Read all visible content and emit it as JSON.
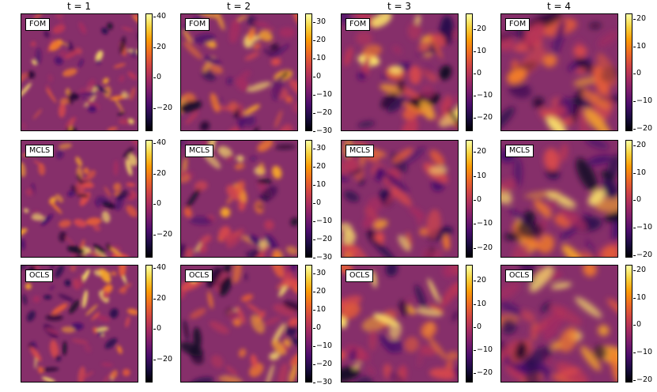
{
  "chart_data": {
    "type": "heatmap",
    "colormap": "inferno",
    "column_titles": [
      "t = 1",
      "t = 2",
      "t = 3",
      "t = 4"
    ],
    "row_labels": [
      "FOM",
      "MCLS",
      "OCLS"
    ],
    "colorbars": [
      [
        {
          "vmin": -35,
          "vmax": 42,
          "ticks": [
            40,
            20,
            0,
            -20
          ]
        },
        {
          "vmin": -30,
          "vmax": 35,
          "ticks": [
            30,
            20,
            10,
            0,
            -10,
            -20,
            -30
          ]
        },
        {
          "vmin": -26,
          "vmax": 27,
          "ticks": [
            20,
            10,
            0,
            -10,
            -20
          ]
        },
        {
          "vmin": -21,
          "vmax": 22,
          "ticks": [
            20,
            10,
            0,
            -10,
            -20
          ]
        }
      ],
      [
        {
          "vmin": -35,
          "vmax": 42,
          "ticks": [
            40,
            20,
            0,
            -20
          ]
        },
        {
          "vmin": -30,
          "vmax": 35,
          "ticks": [
            30,
            20,
            10,
            0,
            -10,
            -20,
            -30
          ]
        },
        {
          "vmin": -24,
          "vmax": 25,
          "ticks": [
            20,
            10,
            0,
            -10,
            -20
          ]
        },
        {
          "vmin": -21,
          "vmax": 22,
          "ticks": [
            20,
            10,
            0,
            -10,
            -20
          ]
        }
      ],
      [
        {
          "vmin": -35,
          "vmax": 42,
          "ticks": [
            40,
            20,
            0,
            -20
          ]
        },
        {
          "vmin": -30,
          "vmax": 35,
          "ticks": [
            30,
            20,
            10,
            0,
            -10,
            -20,
            -30
          ]
        },
        {
          "vmin": -24,
          "vmax": 27,
          "ticks": [
            20,
            10,
            0,
            -10,
            -20
          ]
        },
        {
          "vmin": -21,
          "vmax": 22,
          "ticks": [
            20,
            10,
            0,
            -10,
            -20
          ]
        }
      ]
    ],
    "tick_labels": {
      "40": "40",
      "30": "30",
      "20": "20",
      "10": "10",
      "0": "0",
      "-10": "−10",
      "-20": "−20",
      "-30": "−30"
    }
  }
}
